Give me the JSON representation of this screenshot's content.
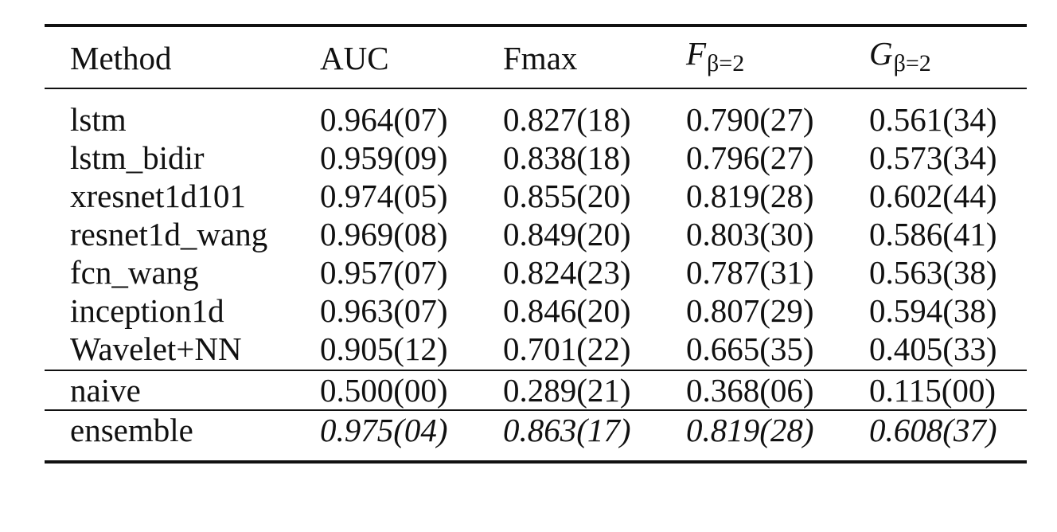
{
  "table": {
    "headers": {
      "method": "Method",
      "auc": "AUC",
      "fmax": "Fmax",
      "fbeta_symbol": "F",
      "fbeta_subscript": "β=2",
      "gbeta_symbol": "G",
      "gbeta_subscript": "β=2"
    },
    "rows": [
      {
        "method": "lstm",
        "auc": "0.964(07)",
        "fmax": "0.827(18)",
        "fbeta": "0.790(27)",
        "gbeta": "0.561(34)"
      },
      {
        "method": "lstm_bidir",
        "auc": "0.959(09)",
        "fmax": "0.838(18)",
        "fbeta": "0.796(27)",
        "gbeta": "0.573(34)"
      },
      {
        "method": "xresnet1d101",
        "auc": "0.974(05)",
        "fmax": "0.855(20)",
        "fbeta": "0.819(28)",
        "gbeta": "0.602(44)"
      },
      {
        "method": "resnet1d_wang",
        "auc": "0.969(08)",
        "fmax": "0.849(20)",
        "fbeta": "0.803(30)",
        "gbeta": "0.586(41)"
      },
      {
        "method": "fcn_wang",
        "auc": "0.957(07)",
        "fmax": "0.824(23)",
        "fbeta": "0.787(31)",
        "gbeta": "0.563(38)"
      },
      {
        "method": "inception1d",
        "auc": "0.963(07)",
        "fmax": "0.846(20)",
        "fbeta": "0.807(29)",
        "gbeta": "0.594(38)"
      },
      {
        "method": "Wavelet+NN",
        "auc": "0.905(12)",
        "fmax": "0.701(22)",
        "fbeta": "0.665(35)",
        "gbeta": "0.405(33)"
      }
    ],
    "baseline": {
      "method": "naive",
      "auc": "0.500(00)",
      "fmax": "0.289(21)",
      "fbeta": "0.368(06)",
      "gbeta": "0.115(00)"
    },
    "ensemble": {
      "method": "ensemble",
      "auc": "0.975(04)",
      "fmax": "0.863(17)",
      "fbeta": "0.819(28)",
      "gbeta": "0.608(37)"
    }
  }
}
